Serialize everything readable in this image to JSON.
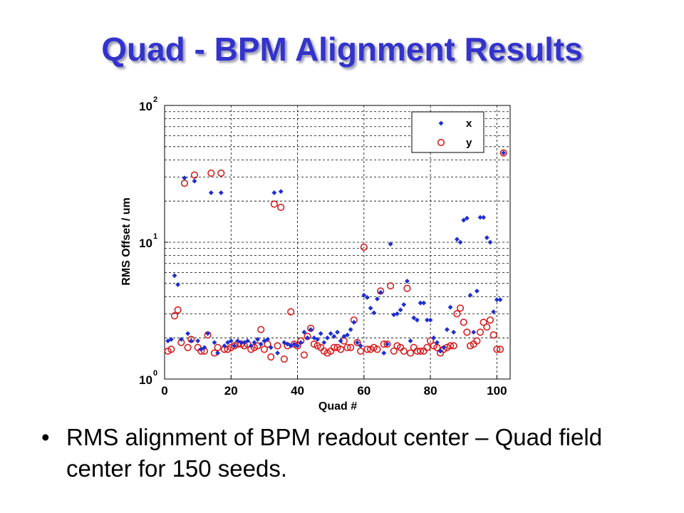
{
  "slide": {
    "title": "Quad - BPM Alignment Results",
    "bullet": "RMS alignment of BPM readout center – Quad field center for 150 seeds."
  },
  "chart_data": {
    "type": "scatter",
    "xlabel": "Quad #",
    "ylabel": "RMS Offset / um",
    "xlim": [
      0,
      104
    ],
    "ylim": [
      1,
      100
    ],
    "yscale": "log",
    "x_ticks": [
      "0",
      "20",
      "40",
      "60",
      "80",
      "100"
    ],
    "y_ticks": [
      {
        "base": "10",
        "exp": "0"
      },
      {
        "base": "10",
        "exp": "1"
      },
      {
        "base": "10",
        "exp": "2"
      }
    ],
    "grid": true,
    "legend_position": "top-right",
    "series": [
      {
        "name": "x",
        "marker": "diamond",
        "color": "#1f2fd0",
        "points": [
          [
            1,
            1.9
          ],
          [
            2,
            1.95
          ],
          [
            3,
            5.7
          ],
          [
            4,
            4.9
          ],
          [
            5,
            1.95
          ],
          [
            6,
            29.5
          ],
          [
            7,
            2.15
          ],
          [
            8,
            1.9
          ],
          [
            9,
            28.0
          ],
          [
            10,
            1.9
          ],
          [
            11,
            1.65
          ],
          [
            12,
            1.7
          ],
          [
            13,
            2.15
          ],
          [
            14,
            23.0
          ],
          [
            15,
            1.85
          ],
          [
            16,
            1.55
          ],
          [
            17,
            23.0
          ],
          [
            18,
            1.75
          ],
          [
            19,
            1.85
          ],
          [
            20,
            1.9
          ],
          [
            21,
            1.75
          ],
          [
            22,
            1.9
          ],
          [
            23,
            1.85
          ],
          [
            24,
            1.85
          ],
          [
            25,
            1.9
          ],
          [
            26,
            1.75
          ],
          [
            27,
            1.85
          ],
          [
            28,
            1.95
          ],
          [
            29,
            1.8
          ],
          [
            30,
            1.9
          ],
          [
            31,
            1.95
          ],
          [
            32,
            1.7
          ],
          [
            33,
            23.0
          ],
          [
            34,
            1.55
          ],
          [
            35,
            23.5
          ],
          [
            36,
            1.85
          ],
          [
            37,
            1.8
          ],
          [
            38,
            1.75
          ],
          [
            39,
            1.8
          ],
          [
            40,
            1.75
          ],
          [
            41,
            1.85
          ],
          [
            42,
            2.2
          ],
          [
            43,
            2.0
          ],
          [
            44,
            2.3
          ],
          [
            45,
            2.0
          ],
          [
            46,
            1.95
          ],
          [
            47,
            2.15
          ],
          [
            48,
            1.85
          ],
          [
            49,
            2.0
          ],
          [
            50,
            2.15
          ],
          [
            51,
            2.05
          ],
          [
            52,
            2.2
          ],
          [
            53,
            1.9
          ],
          [
            54,
            2.05
          ],
          [
            55,
            2.1
          ],
          [
            56,
            2.3
          ],
          [
            57,
            2.6
          ],
          [
            58,
            1.85
          ],
          [
            59,
            1.75
          ],
          [
            60,
            4.1
          ],
          [
            61,
            3.95
          ],
          [
            62,
            3.3
          ],
          [
            63,
            3.05
          ],
          [
            64,
            3.85
          ],
          [
            65,
            4.3
          ],
          [
            66,
            1.55
          ],
          [
            67,
            1.8
          ],
          [
            68,
            9.7
          ],
          [
            69,
            2.95
          ],
          [
            70,
            3.0
          ],
          [
            71,
            3.2
          ],
          [
            72,
            3.5
          ],
          [
            73,
            5.2
          ],
          [
            74,
            1.9
          ],
          [
            75,
            2.8
          ],
          [
            76,
            2.7
          ],
          [
            77,
            3.6
          ],
          [
            78,
            3.6
          ],
          [
            79,
            2.7
          ],
          [
            80,
            2.7
          ],
          [
            81,
            2.0
          ],
          [
            82,
            1.85
          ],
          [
            83,
            1.6
          ],
          [
            84,
            1.7
          ],
          [
            85,
            2.3
          ],
          [
            86,
            3.35
          ],
          [
            87,
            2.2
          ],
          [
            88,
            10.5
          ],
          [
            89,
            10.0
          ],
          [
            90,
            14.5
          ],
          [
            91,
            15.0
          ],
          [
            92,
            4.1
          ],
          [
            93,
            2.2
          ],
          [
            94,
            4.4
          ],
          [
            95,
            15.2
          ],
          [
            96,
            15.2
          ],
          [
            97,
            10.8
          ],
          [
            98,
            10.0
          ],
          [
            99,
            3.1
          ],
          [
            100,
            3.8
          ],
          [
            101,
            3.8
          ],
          [
            102,
            45.0
          ]
        ]
      },
      {
        "name": "y",
        "marker": "circle",
        "color": "#d42020",
        "points": [
          [
            1,
            1.6
          ],
          [
            2,
            1.65
          ],
          [
            3,
            2.9
          ],
          [
            4,
            3.2
          ],
          [
            5,
            1.85
          ],
          [
            6,
            27.0
          ],
          [
            7,
            1.7
          ],
          [
            8,
            1.95
          ],
          [
            9,
            31.0
          ],
          [
            10,
            1.7
          ],
          [
            11,
            1.6
          ],
          [
            12,
            1.6
          ],
          [
            13,
            2.1
          ],
          [
            14,
            32.0
          ],
          [
            15,
            1.55
          ],
          [
            16,
            1.7
          ],
          [
            17,
            32.0
          ],
          [
            18,
            1.65
          ],
          [
            19,
            1.65
          ],
          [
            20,
            1.7
          ],
          [
            21,
            1.75
          ],
          [
            22,
            1.8
          ],
          [
            23,
            1.8
          ],
          [
            24,
            1.75
          ],
          [
            25,
            1.8
          ],
          [
            26,
            1.65
          ],
          [
            27,
            1.7
          ],
          [
            28,
            1.75
          ],
          [
            29,
            2.3
          ],
          [
            30,
            1.65
          ],
          [
            31,
            1.8
          ],
          [
            32,
            1.45
          ],
          [
            33,
            19.0
          ],
          [
            34,
            1.75
          ],
          [
            35,
            18.0
          ],
          [
            36,
            1.4
          ],
          [
            37,
            1.75
          ],
          [
            38,
            3.1
          ],
          [
            39,
            1.8
          ],
          [
            40,
            1.75
          ],
          [
            41,
            1.9
          ],
          [
            42,
            1.5
          ],
          [
            43,
            2.05
          ],
          [
            44,
            2.35
          ],
          [
            45,
            1.8
          ],
          [
            46,
            1.75
          ],
          [
            47,
            1.7
          ],
          [
            48,
            1.6
          ],
          [
            49,
            1.55
          ],
          [
            50,
            1.6
          ],
          [
            51,
            1.7
          ],
          [
            52,
            1.7
          ],
          [
            53,
            1.65
          ],
          [
            54,
            1.9
          ],
          [
            55,
            1.7
          ],
          [
            56,
            1.7
          ],
          [
            57,
            2.7
          ],
          [
            58,
            1.85
          ],
          [
            59,
            1.6
          ],
          [
            60,
            9.2
          ],
          [
            61,
            1.65
          ],
          [
            62,
            1.65
          ],
          [
            63,
            1.7
          ],
          [
            64,
            1.65
          ],
          [
            65,
            4.4
          ],
          [
            66,
            1.8
          ],
          [
            67,
            1.8
          ],
          [
            68,
            4.8
          ],
          [
            69,
            1.6
          ],
          [
            70,
            1.75
          ],
          [
            71,
            1.7
          ],
          [
            72,
            1.6
          ],
          [
            73,
            4.6
          ],
          [
            74,
            1.55
          ],
          [
            75,
            1.7
          ],
          [
            76,
            1.6
          ],
          [
            77,
            1.6
          ],
          [
            78,
            1.6
          ],
          [
            79,
            1.7
          ],
          [
            80,
            1.9
          ],
          [
            81,
            1.75
          ],
          [
            82,
            1.7
          ],
          [
            83,
            1.55
          ],
          [
            84,
            1.65
          ],
          [
            85,
            1.7
          ],
          [
            86,
            1.75
          ],
          [
            87,
            1.75
          ],
          [
            88,
            3.0
          ],
          [
            89,
            3.3
          ],
          [
            90,
            2.6
          ],
          [
            91,
            2.2
          ],
          [
            92,
            1.75
          ],
          [
            93,
            1.8
          ],
          [
            94,
            1.9
          ],
          [
            95,
            2.2
          ],
          [
            96,
            2.6
          ],
          [
            97,
            2.4
          ],
          [
            98,
            2.7
          ],
          [
            99,
            2.1
          ],
          [
            100,
            1.65
          ],
          [
            101,
            1.65
          ],
          [
            102,
            45.0
          ]
        ]
      }
    ]
  }
}
